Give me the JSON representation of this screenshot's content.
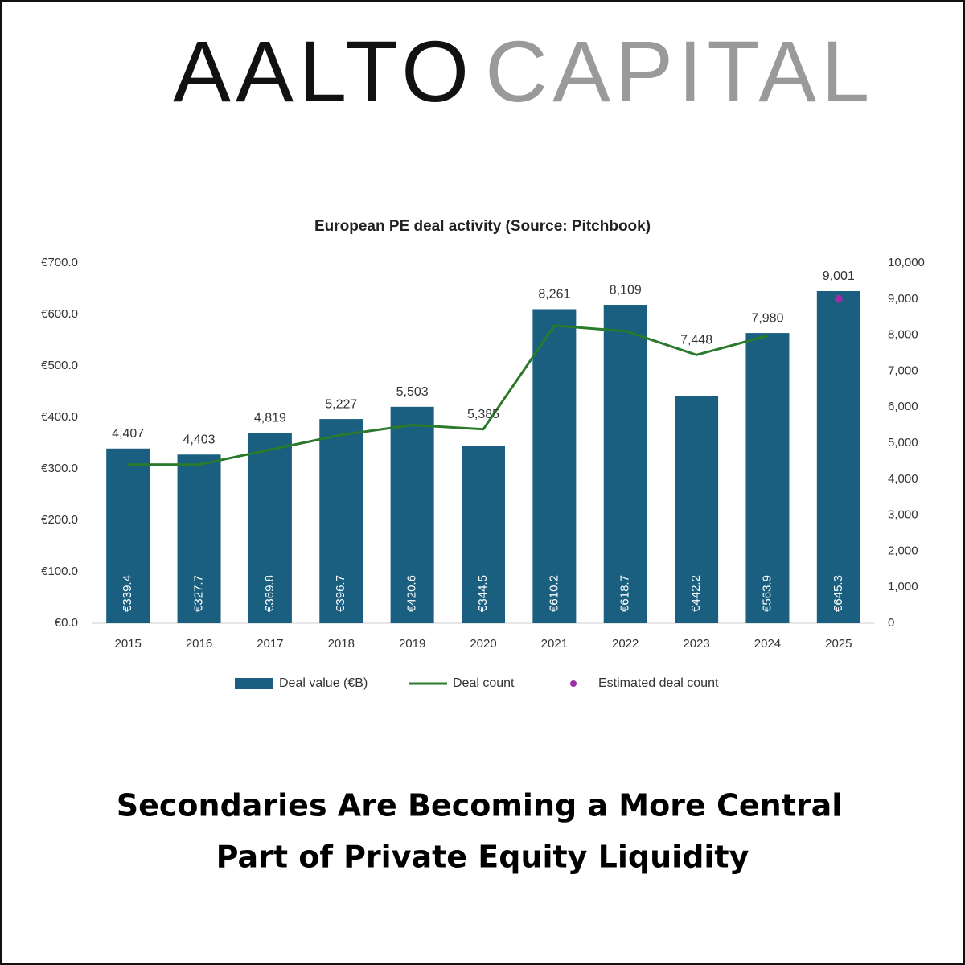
{
  "brand": {
    "first": "AALTO",
    "second": "CAPITAL"
  },
  "headline": {
    "lines": [
      "Secondaries Are Becoming a More Central",
      "Part of Private Equity Liquidity"
    ]
  },
  "chart_data": {
    "type": "bar",
    "title": "European PE deal activity (Source: Pitchbook)",
    "categories": [
      "2015",
      "2016",
      "2017",
      "2018",
      "2019",
      "2020",
      "2021",
      "2022",
      "2023",
      "2024",
      "2025"
    ],
    "series": [
      {
        "name": "Deal value (€B)",
        "type": "bar",
        "color": "#1a5f80",
        "axis": "y",
        "values": [
          339.4,
          327.7,
          369.8,
          396.7,
          420.6,
          344.5,
          610.2,
          618.7,
          442.2,
          563.9,
          645.3
        ],
        "value_labels": [
          "€339.4",
          "€327.7",
          "€369.8",
          "€396.7",
          "€420.6",
          "€344.5",
          "€610.2",
          "€618.7",
          "€442.2",
          "€563.9",
          "€645.3"
        ]
      },
      {
        "name": "Deal count",
        "type": "line",
        "color": "#2b7a2b",
        "axis": "y2",
        "values": [
          4407,
          4403,
          4819,
          5227,
          5503,
          5385,
          8261,
          8109,
          7448,
          7980,
          null
        ],
        "value_labels": [
          "4,407",
          "4,403",
          "4,819",
          "5,227",
          "5,503",
          "5,385",
          "8,261",
          "8,109",
          "7,448",
          "7,980",
          null
        ]
      },
      {
        "name": "Estimated deal count",
        "type": "scatter",
        "color": "#9b2fa3",
        "axis": "y2",
        "values": [
          null,
          null,
          null,
          null,
          null,
          null,
          null,
          null,
          null,
          null,
          9001
        ],
        "value_labels": [
          null,
          null,
          null,
          null,
          null,
          null,
          null,
          null,
          null,
          null,
          "9,001"
        ]
      }
    ],
    "ylim": [
      0,
      700
    ],
    "yticks": [
      {
        "value": 0,
        "label": "€0.0"
      },
      {
        "value": 100,
        "label": "€100.0"
      },
      {
        "value": 200,
        "label": "€200.0"
      },
      {
        "value": 300,
        "label": "€300.0"
      },
      {
        "value": 400,
        "label": "€400.0"
      },
      {
        "value": 500,
        "label": "€500.0"
      },
      {
        "value": 600,
        "label": "€600.0"
      },
      {
        "value": 700,
        "label": "€700.0"
      }
    ],
    "y2lim": [
      0,
      10000
    ],
    "y2ticks": [
      0,
      {
        "value": 1000,
        "label": "1,000"
      },
      {
        "value": 2000,
        "label": "2,000"
      },
      {
        "value": 3000,
        "label": "3,000"
      },
      {
        "value": 4000,
        "label": "4,000"
      },
      {
        "value": 5000,
        "label": "5,000"
      },
      {
        "value": 6000,
        "label": "6,000"
      },
      {
        "value": 7000,
        "label": "7,000"
      },
      {
        "value": 8000,
        "label": "8,000"
      },
      {
        "value": 9000,
        "label": "9,000"
      },
      {
        "value": 10000,
        "label": "10,000"
      }
    ],
    "legend": "bottom",
    "grid": false
  }
}
